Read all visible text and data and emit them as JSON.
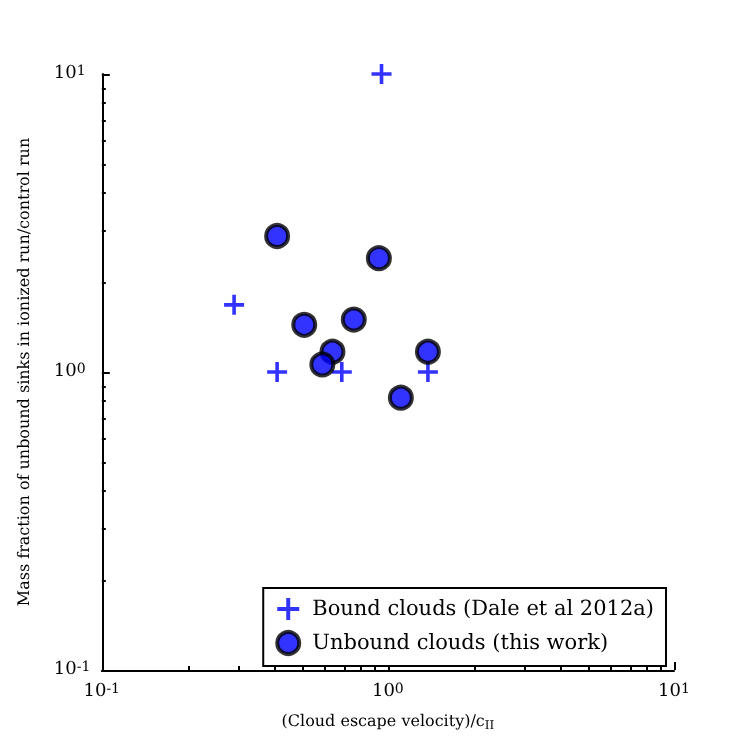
{
  "chart_data": {
    "type": "scatter",
    "xlabel": "(Cloud escape velocity)/c$_{II}$",
    "ylabel": "Mass fraction of unbound sinks in ionized run/control run",
    "log": "xy",
    "grid": false,
    "legend": "bottom right",
    "xlim": [
      0.1,
      10
    ],
    "ylim": [
      0.1,
      10
    ],
    "xticks": [
      {
        "value": 0.1,
        "label": "10$^{-1}$"
      },
      {
        "value": 1,
        "label": "10$^{0}$"
      },
      {
        "value": 10,
        "label": "10$^{1}$"
      }
    ],
    "yticks": [
      {
        "value": 0.1,
        "label": "10$^{-1}$"
      },
      {
        "value": 1,
        "label": "10$^{0}$"
      },
      {
        "value": 10,
        "label": "10$^{1}$"
      }
    ],
    "series": [
      {
        "name": "Bound clouds (Dale et al 2012a)",
        "color": "#0000ff",
        "marker": "cross",
        "x": [
          0.95,
          0.29,
          0.41,
          0.69,
          1.38
        ],
        "values": [
          10,
          1.68,
          1,
          1,
          1
        ]
      },
      {
        "name": "Unbound clouds (this work)",
        "color": "#0000ff",
        "marker": "circle",
        "x": [
          0.41,
          0.93,
          0.51,
          0.76,
          0.64,
          0.59,
          1.38,
          1.11
        ],
        "values": [
          2.86,
          2.41,
          1.44,
          1.5,
          1.17,
          1.06,
          1.17,
          0.82
        ]
      }
    ]
  }
}
